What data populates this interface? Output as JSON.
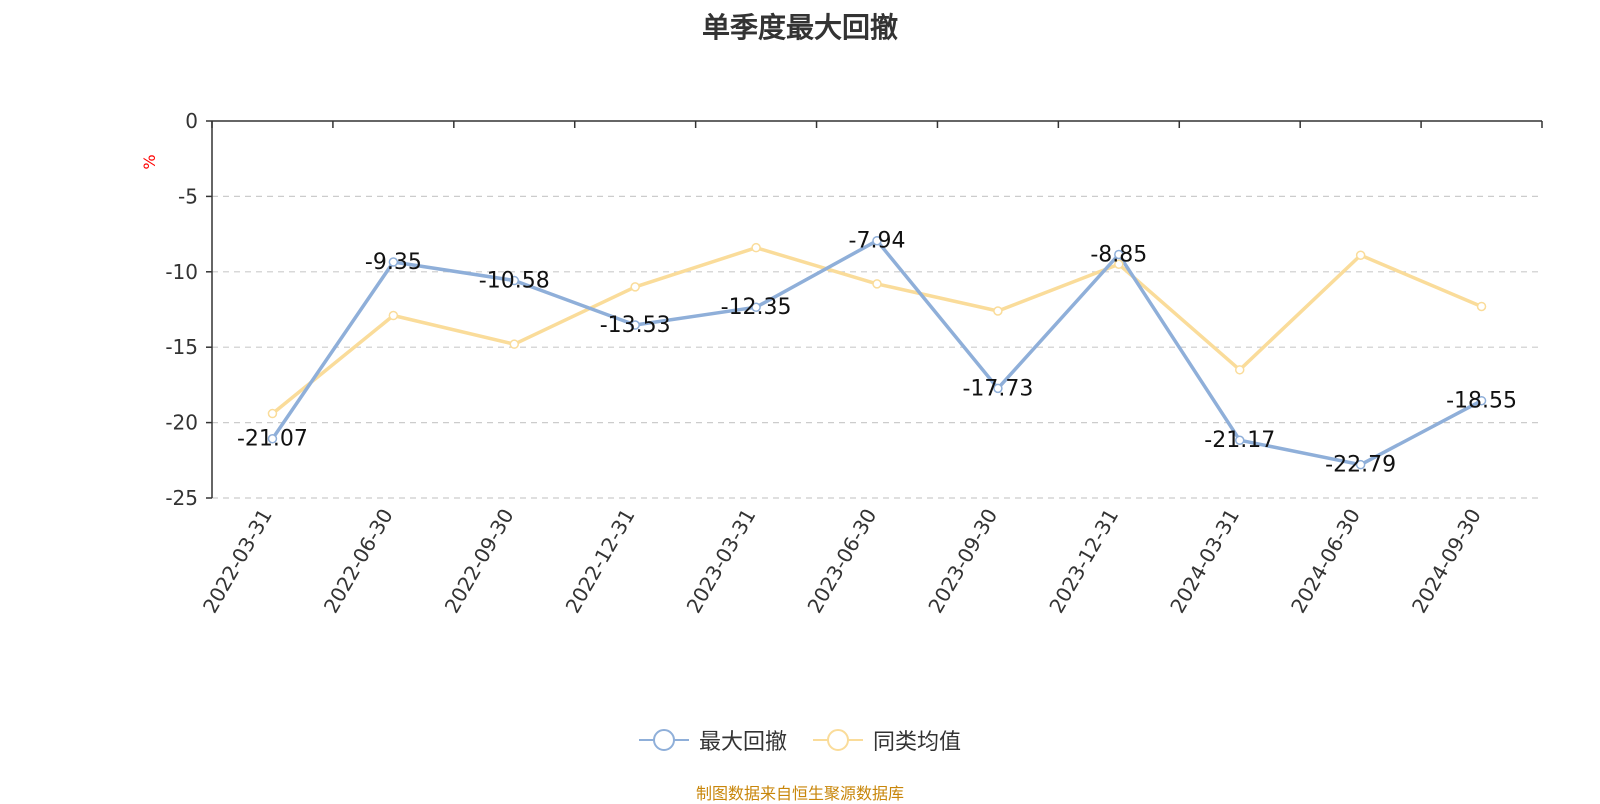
{
  "title": "单季度最大回撤",
  "unit_label": "%",
  "source": "制图数据来自恒生聚源数据库",
  "colors": {
    "series_1": "#8fafd9",
    "series_2": "#fadc9a",
    "grid": "#cccccc",
    "axis": "#333333"
  },
  "chart_data": {
    "type": "line",
    "x": [
      "2022-03-31",
      "2022-06-30",
      "2022-09-30",
      "2022-12-31",
      "2023-03-31",
      "2023-06-30",
      "2023-09-30",
      "2023-12-31",
      "2024-03-31",
      "2024-06-30",
      "2024-09-30"
    ],
    "series": [
      {
        "name": "最大回撤",
        "values": [
          -21.07,
          -9.35,
          -10.58,
          -13.53,
          -12.35,
          -7.94,
          -17.73,
          -8.85,
          -21.17,
          -22.79,
          -18.55
        ],
        "labels": [
          "-21.07",
          "-9.35",
          "-10.58",
          "-13.53",
          "-12.35",
          "-7.94",
          "-17.73",
          "-8.85",
          "-21.17",
          "-22.79",
          "-18.55"
        ]
      },
      {
        "name": "同类均值",
        "values": [
          -19.4,
          -12.9,
          -14.8,
          -11.0,
          -8.4,
          -10.8,
          -12.6,
          -9.5,
          -16.5,
          -8.9,
          -12.3
        ]
      }
    ],
    "ylim": [
      -25,
      0
    ],
    "yticks": [
      0,
      -5,
      -10,
      -15,
      -20,
      -25
    ],
    "ylabel": "%",
    "grid": true,
    "legend": "bottom-center"
  }
}
